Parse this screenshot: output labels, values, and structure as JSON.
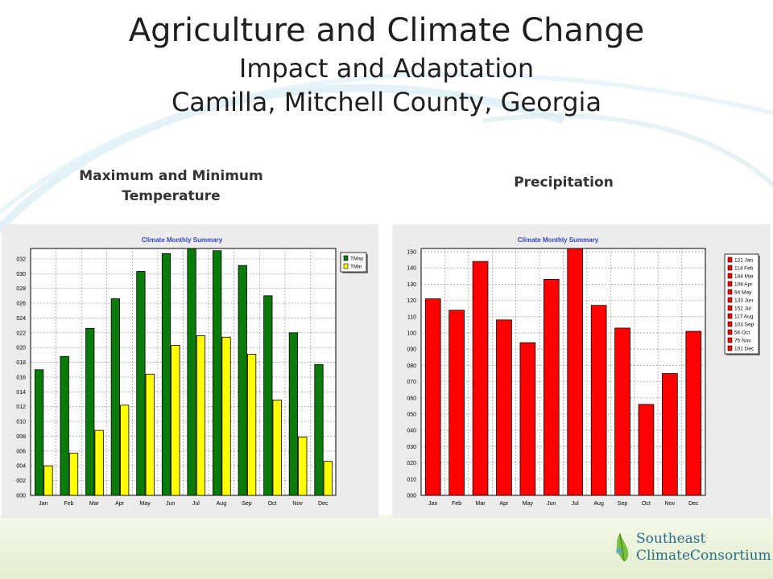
{
  "slide": {
    "title_line1": "Agriculture and Climate Change",
    "title_line2": "Impact and Adaptation",
    "title_line3": "Camilla, Mitchell County, Georgia",
    "left_heading_line1": "Maximum and Minimum",
    "left_heading_line2": "Temperature",
    "right_heading": "Precipitation",
    "logo_line1": "Southeast",
    "logo_line2": "ClimateConsortium"
  },
  "colors": {
    "tmax": "#0a7a0a",
    "tmin": "#ffff00",
    "precip": "#ff0000",
    "chart_title": "#3344cc",
    "logo": "#2b6c87"
  },
  "chart_data": [
    {
      "type": "bar",
      "title": "Climate Monthly Summary",
      "categories": [
        "Jan",
        "Feb",
        "Mar",
        "Apr",
        "May",
        "Jun",
        "Jul",
        "Aug",
        "Sep",
        "Oct",
        "Nov",
        "Dec"
      ],
      "series": [
        {
          "name": "TMax",
          "values": [
            17,
            18.8,
            22.6,
            26.6,
            30.3,
            32.7,
            33.4,
            33.1,
            31.1,
            27,
            22,
            17.7
          ]
        },
        {
          "name": "TMin",
          "values": [
            4,
            5.7,
            8.8,
            12.2,
            16.4,
            20.3,
            21.6,
            21.4,
            19.1,
            12.9,
            7.9,
            4.6
          ]
        }
      ],
      "ylim": [
        0,
        33.4
      ],
      "yticks": [
        0,
        2,
        4,
        6,
        8,
        10,
        12,
        14,
        16,
        18,
        20,
        22,
        24,
        26,
        28,
        30,
        32
      ],
      "ytick_labels": [
        "000",
        "002",
        "004",
        "006",
        "008",
        "010",
        "012",
        "014",
        "016",
        "018",
        "020",
        "022",
        "024",
        "026",
        "028",
        "030",
        "032"
      ],
      "grid": true,
      "legend": "right"
    },
    {
      "type": "bar",
      "title": "Climate Monthly Summary",
      "categories": [
        "Jan",
        "Feb",
        "Mar",
        "Apr",
        "May",
        "Jun",
        "Jul",
        "Aug",
        "Sep",
        "Oct",
        "Nov",
        "Dec"
      ],
      "series": [
        {
          "name": "Precipitation",
          "values": [
            121,
            114,
            144,
            108,
            94,
            133,
            152,
            117,
            103,
            56,
            75,
            101
          ]
        }
      ],
      "legend_entries": [
        "121 Jan",
        "114 Feb",
        "144 Mar",
        "108 Apr",
        "94 May",
        "133 Jun",
        "152 Jul",
        "117 Aug",
        "103 Sep",
        "56 Oct",
        "75 Nov",
        "101 Dec"
      ],
      "ylim": [
        0,
        152
      ],
      "yticks": [
        0,
        10,
        20,
        30,
        40,
        50,
        60,
        70,
        80,
        90,
        100,
        110,
        120,
        130,
        140,
        150
      ],
      "ytick_labels": [
        "000",
        "010",
        "020",
        "030",
        "040",
        "050",
        "060",
        "070",
        "080",
        "090",
        "100",
        "110",
        "120",
        "130",
        "140",
        "150"
      ],
      "grid": true,
      "legend": "right"
    }
  ]
}
